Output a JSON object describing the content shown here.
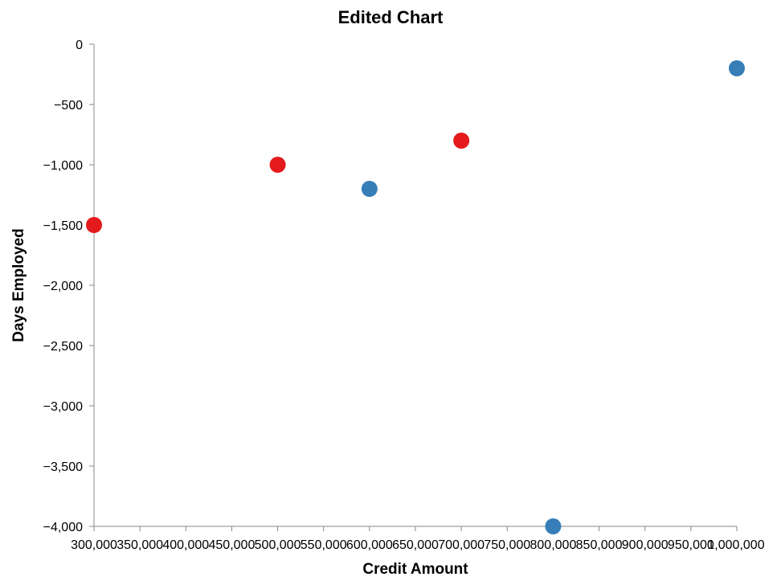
{
  "chart_data": {
    "type": "scatter",
    "title": "Edited Chart",
    "xlabel": "Credit Amount",
    "ylabel": "Days Employed",
    "xlim": [
      300000,
      1000000
    ],
    "ylim": [
      -4000,
      0
    ],
    "x_ticks": [
      300000,
      350000,
      400000,
      450000,
      500000,
      550000,
      600000,
      650000,
      700000,
      750000,
      800000,
      850000,
      900000,
      950000,
      1000000
    ],
    "x_tick_labels": [
      "300,000",
      "350,000",
      "400,000",
      "450,000",
      "500,000",
      "550,000",
      "600,000",
      "650,000",
      "700,000",
      "750,000",
      "800,000",
      "850,000",
      "900,000",
      "950,000",
      "1,000,000"
    ],
    "y_ticks": [
      0,
      -500,
      -1000,
      -1500,
      -2000,
      -2500,
      -3000,
      -3500,
      -4000
    ],
    "y_tick_labels": [
      "0",
      "−500",
      "−1,000",
      "−1,500",
      "−2,000",
      "−2,500",
      "−3,000",
      "−3,500",
      "−4,000"
    ],
    "grid": false,
    "legend": "none",
    "points": [
      {
        "x": 300000,
        "y": -1500,
        "color": "#e41a1c"
      },
      {
        "x": 500000,
        "y": -1000,
        "color": "#e41a1c"
      },
      {
        "x": 700000,
        "y": -800,
        "color": "#e41a1c"
      },
      {
        "x": 600000,
        "y": -1200,
        "color": "#377eb8"
      },
      {
        "x": 800000,
        "y": -4000,
        "color": "#377eb8"
      },
      {
        "x": 1000000,
        "y": -200,
        "color": "#377eb8"
      }
    ]
  }
}
